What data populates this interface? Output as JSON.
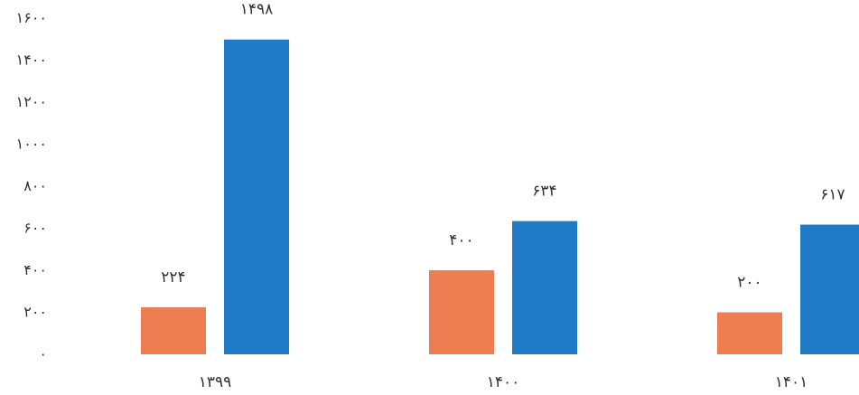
{
  "chart_data": {
    "type": "bar",
    "categories": [
      "۱۳۹۹",
      "۱۴۰۰",
      "۱۴۰۱"
    ],
    "series": [
      {
        "values": [
          224,
          400,
          200
        ],
        "labels": [
          "۲۲۴",
          "۴۰۰",
          "۲۰۰"
        ],
        "color": "#EE7D52"
      },
      {
        "values": [
          1498,
          634,
          617
        ],
        "labels": [
          "۱۴۹۸",
          "۶۳۴",
          "۶۱۷"
        ],
        "color": "#1F7BC8"
      }
    ],
    "y_ticks": [
      0,
      200,
      400,
      600,
      800,
      1000,
      1200,
      1400,
      1600
    ],
    "y_tick_labels": [
      "۰",
      "۲۰۰",
      "۴۰۰",
      "۶۰۰",
      "۸۰۰",
      "۱۰۰۰",
      "۱۲۰۰",
      "۱۴۰۰",
      "۱۶۰۰"
    ],
    "ylim": [
      0,
      1600
    ],
    "grid": false,
    "legend": false
  }
}
